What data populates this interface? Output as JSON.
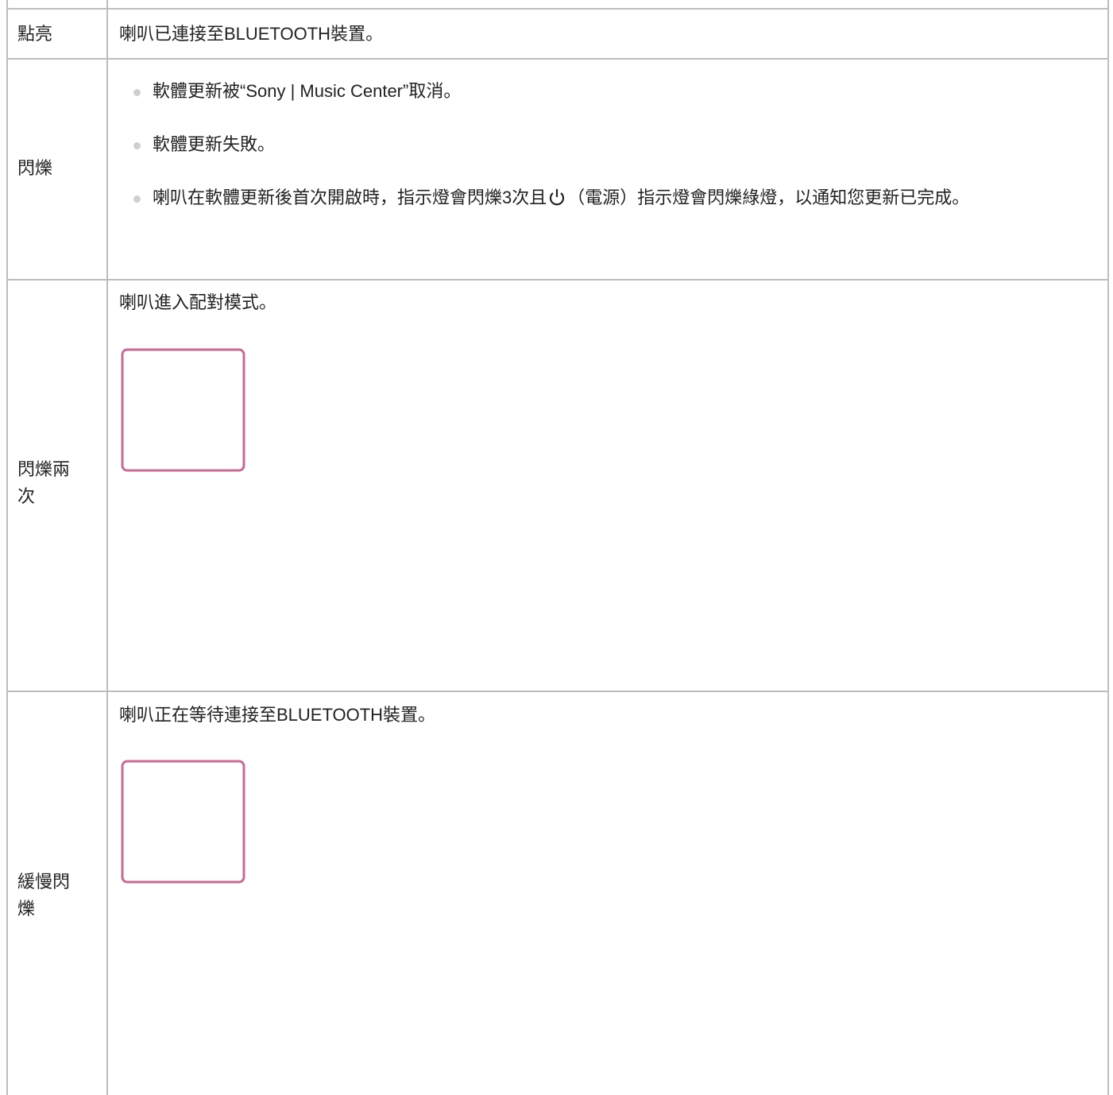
{
  "table": {
    "rows": [
      {
        "label": "點亮",
        "text": "喇叭已連接至BLUETOOTH裝置。"
      },
      {
        "label": "閃爍",
        "bullets": [
          "軟體更新被“Sony | Music Center”取消。",
          "軟體更新失敗。",
          {
            "before_icon": "喇叭在軟體更新後首次開啟時，指示燈會閃爍3次且",
            "after_icon": "（電源）指示燈會閃爍綠燈，以通知您更新已完成。"
          }
        ]
      },
      {
        "label": "閃爍兩次",
        "text": "喇叭進入配對模式。"
      },
      {
        "label": "緩慢閃爍",
        "text": "喇叭正在等待連接至BLUETOOTH裝置。"
      }
    ]
  }
}
